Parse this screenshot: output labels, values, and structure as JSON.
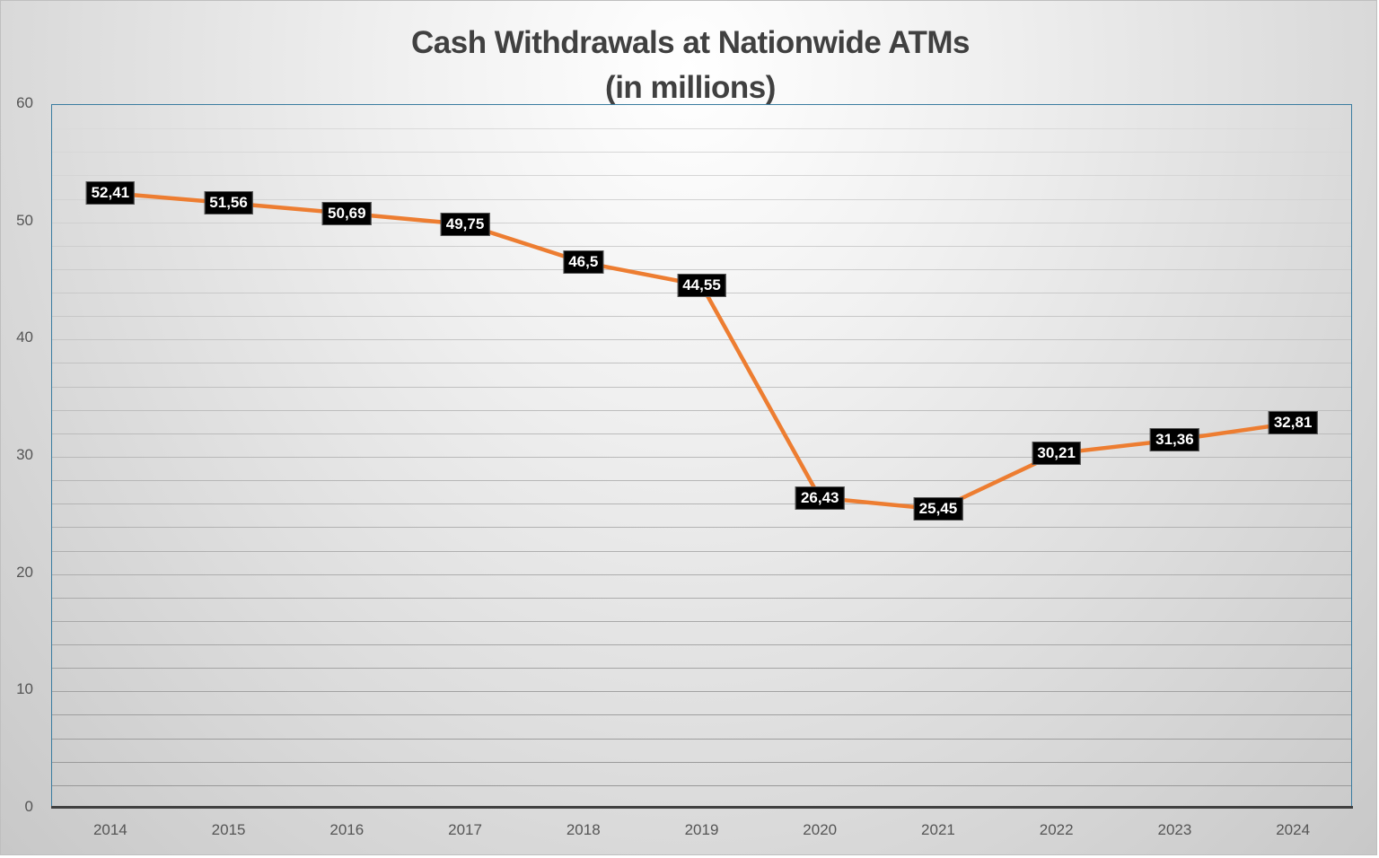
{
  "chart_data": {
    "type": "line",
    "title": "Cash Withdrawals at Nationwide ATMs",
    "subtitle": "(in millions)",
    "xlabel": "",
    "ylabel": "",
    "categories": [
      "2014",
      "2015",
      "2016",
      "2017",
      "2018",
      "2019",
      "2020",
      "2021",
      "2022",
      "2023",
      "2024"
    ],
    "series": [
      {
        "name": "Cash Withdrawals",
        "color": "#ED7D31",
        "values": [
          52.41,
          51.56,
          50.69,
          49.75,
          46.5,
          44.55,
          26.43,
          25.45,
          30.21,
          31.36,
          32.81
        ],
        "labels": [
          "52,41",
          "51,56",
          "50,69",
          "49,75",
          "46,5",
          "44,55",
          "26,43",
          "25,45",
          "30,21",
          "31,36",
          "32,81"
        ]
      }
    ],
    "ylim": [
      0,
      60
    ],
    "y_ticks": [
      "0",
      "10",
      "20",
      "30",
      "40",
      "50",
      "60"
    ],
    "grid": true,
    "grid_minor_step": 2,
    "legend": "none"
  },
  "colors": {
    "line": "#ED7D31",
    "plot_border": "#3A7CA0",
    "label_bg": "#000000",
    "label_text": "#FFFFFF",
    "title_text": "#404040"
  }
}
